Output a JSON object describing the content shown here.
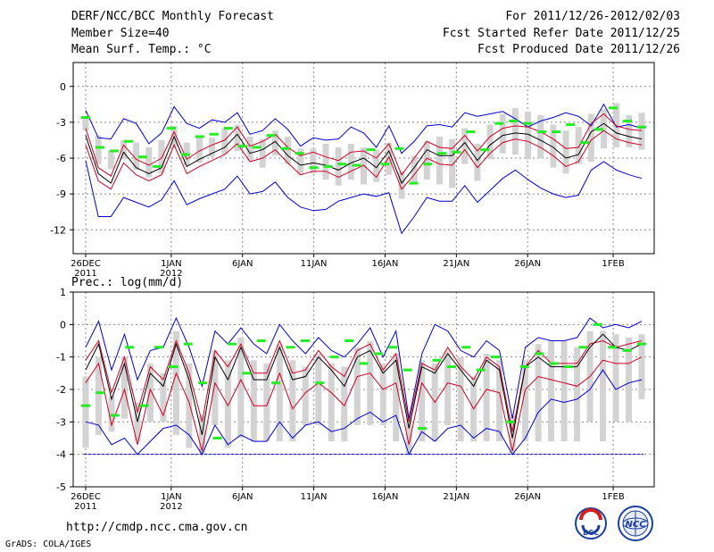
{
  "header": {
    "title": "DERF/NCC/BCC Monthly Forecast",
    "member_size": "Member Size=40",
    "variable": "Mean Surf. Temp.: °C",
    "period": "For 2011/12/26-2012/02/03",
    "fcst_started": "Fcst Started Refer Date 2011/12/25",
    "fcst_produced": "Fcst Produced Date 2011/12/26"
  },
  "footer": {
    "url": "http://cmdp.ncc.cma.gov.cn",
    "credit": "GrADS: COLA/IGES",
    "logo_left_text": "BCC",
    "logo_right_text": "NCC"
  },
  "colors": {
    "min_max": "#0000cc",
    "spread": "#cc0022",
    "mean": "#000000",
    "obs": "#22ee22",
    "box": "#d3d3d3",
    "grid": "#888888",
    "floor": "#0000cc"
  },
  "chart_data": [
    {
      "type": "line",
      "name": "temp",
      "title": "Mean Surf. Temp.: °C",
      "xlabel": "",
      "ylabel": "",
      "ylim": [
        -14,
        2
      ],
      "yticks": [
        0,
        -3,
        -6,
        -9,
        -12
      ],
      "x_label_days": [
        0,
        6,
        11,
        16,
        21,
        26,
        31,
        37
      ],
      "x_tick_labels": [
        [
          "26DEC",
          "2011"
        ],
        [
          "1JAN",
          "2012"
        ],
        [
          "6JAN"
        ],
        [
          "11JAN"
        ],
        [
          "16JAN"
        ],
        [
          "21JAN"
        ],
        [
          "26JAN"
        ],
        [
          "1FEB"
        ]
      ],
      "grid": true,
      "days": 39,
      "series": [
        {
          "name": "max",
          "values": [
            -2.0,
            -4.3,
            -4.4,
            -2.7,
            -3.1,
            -4.8,
            -3.9,
            -1.7,
            -3.1,
            -3.5,
            -2.8,
            -3.0,
            -2.2,
            -4.0,
            -3.7,
            -2.7,
            -3.6,
            -5.0,
            -4.3,
            -4.5,
            -4.4,
            -3.4,
            -3.9,
            -5.1,
            -3.3,
            -5.6,
            -4.6,
            -3.3,
            -3.2,
            -3.4,
            -2.2,
            -2.5,
            -2.3,
            -2.1,
            -2.7,
            -3.4,
            -2.9,
            -2.6,
            -2.2,
            -2.5,
            -3.3,
            -1.5,
            -3.4,
            -3.2,
            -3.5
          ]
        },
        {
          "name": "spread_high",
          "values": [
            -3.5,
            -6.8,
            -7.5,
            -4.9,
            -6.1,
            -6.6,
            -6.0,
            -3.8,
            -6.1,
            -5.4,
            -4.9,
            -4.5,
            -3.4,
            -5.0,
            -4.6,
            -4.0,
            -5.1,
            -5.8,
            -5.5,
            -5.9,
            -6.2,
            -5.5,
            -5.4,
            -6.0,
            -4.8,
            -7.4,
            -6.0,
            -4.6,
            -5.1,
            -5.2,
            -4.1,
            -5.4,
            -4.2,
            -3.5,
            -3.3,
            -3.4,
            -3.8,
            -4.4,
            -5.2,
            -5.1,
            -3.1,
            -2.3,
            -3.3,
            -3.6,
            -3.7
          ]
        },
        {
          "name": "mean",
          "values": [
            -4.1,
            -7.3,
            -8.1,
            -5.5,
            -6.8,
            -7.3,
            -6.8,
            -4.2,
            -6.7,
            -6.1,
            -5.6,
            -5.1,
            -4.0,
            -5.6,
            -5.3,
            -4.6,
            -5.8,
            -6.6,
            -6.4,
            -6.6,
            -7.0,
            -6.4,
            -6.0,
            -6.8,
            -5.4,
            -8.1,
            -6.8,
            -5.3,
            -5.8,
            -5.8,
            -4.7,
            -6.2,
            -4.9,
            -4.1,
            -3.9,
            -4.0,
            -4.5,
            -5.1,
            -6.0,
            -5.7,
            -3.8,
            -3.1,
            -3.9,
            -4.2,
            -4.4
          ]
        },
        {
          "name": "spread_low",
          "values": [
            -4.9,
            -7.9,
            -8.6,
            -6.4,
            -7.4,
            -7.9,
            -7.4,
            -4.9,
            -7.3,
            -6.7,
            -6.2,
            -5.7,
            -4.8,
            -6.3,
            -6.0,
            -5.3,
            -6.4,
            -7.4,
            -7.1,
            -7.1,
            -7.6,
            -7.1,
            -6.6,
            -7.6,
            -5.9,
            -8.6,
            -7.4,
            -6.0,
            -6.5,
            -6.6,
            -5.3,
            -6.8,
            -5.6,
            -4.7,
            -4.4,
            -4.6,
            -5.1,
            -5.8,
            -6.7,
            -6.3,
            -4.5,
            -3.7,
            -4.4,
            -4.7,
            -4.9
          ]
        },
        {
          "name": "min",
          "values": [
            -6.2,
            -10.9,
            -10.9,
            -9.3,
            -9.7,
            -10.1,
            -9.5,
            -7.9,
            -9.9,
            -9.4,
            -9.0,
            -8.6,
            -7.5,
            -9.0,
            -8.8,
            -8.0,
            -9.3,
            -10.1,
            -10.4,
            -10.3,
            -9.6,
            -9.3,
            -9.0,
            -9.2,
            -8.9,
            -12.3,
            -10.9,
            -9.3,
            -9.6,
            -9.6,
            -8.3,
            -9.7,
            -8.7,
            -7.7,
            -7.0,
            -7.8,
            -8.5,
            -9.0,
            -9.3,
            -9.1,
            -7.0,
            -6.3,
            -7.0,
            -7.4,
            -7.7
          ]
        }
      ],
      "box_range": [
        [
          -2.7,
          -3.7
        ],
        [
          -4.1,
          -6.5
        ],
        [
          -5.4,
          -6.9
        ],
        [
          -4.5,
          -6.1
        ],
        [
          -4.7,
          -7.0
        ],
        [
          -5.1,
          -7.6
        ],
        [
          -4.5,
          -7.3
        ],
        [
          -3.3,
          -5.1
        ],
        [
          -4.7,
          -6.6
        ],
        [
          -4.2,
          -6.4
        ],
        [
          -4.3,
          -5.9
        ],
        [
          -3.5,
          -5.7
        ],
        [
          -3.2,
          -5.4
        ],
        [
          -4.2,
          -6.2
        ],
        [
          -4.4,
          -6.8
        ],
        [
          -3.7,
          -5.8
        ],
        [
          -4.2,
          -6.5
        ],
        [
          -5.2,
          -7.4
        ],
        [
          -5.2,
          -7.3
        ],
        [
          -4.8,
          -7.8
        ],
        [
          -5.1,
          -8.3
        ],
        [
          -4.8,
          -7.8
        ],
        [
          -5.1,
          -8.2
        ],
        [
          -5.3,
          -8.0
        ],
        [
          -4.7,
          -7.4
        ],
        [
          -7.1,
          -9.4
        ],
        [
          -5.8,
          -8.2
        ],
        [
          -4.6,
          -7.8
        ],
        [
          -4.2,
          -8.2
        ],
        [
          -4.4,
          -8.5
        ],
        [
          -3.5,
          -6.5
        ],
        [
          -4.8,
          -7.9
        ],
        [
          -3.2,
          -6.1
        ],
        [
          -2.3,
          -5.6
        ],
        [
          -1.8,
          -5.7
        ],
        [
          -2.1,
          -6.1
        ],
        [
          -2.4,
          -6.0
        ],
        [
          -3.2,
          -6.8
        ],
        [
          -3.7,
          -7.3
        ],
        [
          -3.4,
          -6.5
        ],
        [
          -2.3,
          -6.3
        ],
        [
          -1.9,
          -5.2
        ],
        [
          -1.4,
          -5.1
        ],
        [
          -2.4,
          -5.1
        ],
        [
          -2.2,
          -5.3
        ]
      ],
      "observed": [
        -2.6,
        -5.1,
        -5.4,
        -4.6,
        -5.9,
        -6.7,
        -3.5,
        -5.7,
        -4.2,
        -4.0,
        -3.5,
        -5.0,
        -5.1,
        -4.1,
        -5.2,
        -5.6,
        -6.8,
        -6.7,
        -6.5,
        -6.6,
        -5.3,
        -6.5,
        -5.2,
        -8.1,
        -6.5,
        -5.6,
        -5.5,
        -3.8,
        -5.3,
        -3.1,
        -2.9,
        -3.1,
        -3.8,
        -3.8,
        -3.2,
        -4.7,
        -3.6,
        -1.8,
        -2.9,
        -3.4
      ]
    },
    {
      "type": "line",
      "name": "precip",
      "title": "Prec.: log(mm/d)",
      "xlabel": "",
      "ylabel": "",
      "ylim": [
        -5,
        1
      ],
      "yticks": [
        1,
        0,
        -1,
        -2,
        -3,
        -4,
        -5
      ],
      "x_label_days": [
        0,
        6,
        11,
        16,
        21,
        26,
        31,
        37
      ],
      "x_tick_labels": [
        [
          "26DEC",
          "2011"
        ],
        [
          "1JAN",
          "2012"
        ],
        [
          "6JAN"
        ],
        [
          "11JAN"
        ],
        [
          "16JAN"
        ],
        [
          "21JAN"
        ],
        [
          "26JAN"
        ],
        [
          "1FEB"
        ]
      ],
      "grid": true,
      "days": 39,
      "floor": -4,
      "series": [
        {
          "name": "max",
          "values": [
            -0.7,
            0.1,
            -1.4,
            -0.3,
            -1.7,
            -0.8,
            -0.7,
            0.2,
            -0.7,
            -1.9,
            -0.2,
            -0.6,
            -0.1,
            -0.6,
            -0.9,
            0.0,
            -0.5,
            -0.9,
            -0.4,
            -0.8,
            -1.0,
            -0.6,
            -0.1,
            -1.0,
            -0.2,
            -2.9,
            -0.9,
            0.0,
            -0.2,
            -0.8,
            -1.0,
            -0.5,
            -0.8,
            -2.9,
            -0.7,
            -0.4,
            -0.5,
            -0.5,
            -0.4,
            0.2,
            -0.1,
            0.0,
            -0.1,
            0.1
          ]
        },
        {
          "name": "spread_high",
          "values": [
            -1.1,
            -0.5,
            -2.1,
            -1.0,
            -2.7,
            -1.3,
            -1.7,
            -0.5,
            -1.5,
            -3.0,
            -0.8,
            -1.3,
            -0.6,
            -1.5,
            -1.5,
            -0.5,
            -1.5,
            -1.4,
            -0.8,
            -1.3,
            -1.6,
            -0.8,
            -0.6,
            -1.4,
            -0.9,
            -3.0,
            -1.2,
            -1.4,
            -0.7,
            -1.3,
            -1.7,
            -1.0,
            -1.3,
            -3.3,
            -1.3,
            -0.8,
            -1.2,
            -1.2,
            -1.2,
            -0.6,
            -0.5,
            -0.7,
            -0.6,
            -0.5
          ]
        },
        {
          "name": "mean",
          "values": [
            -1.4,
            -0.6,
            -2.3,
            -1.2,
            -3.0,
            -1.5,
            -1.9,
            -0.6,
            -1.7,
            -3.4,
            -1.0,
            -1.7,
            -0.7,
            -1.7,
            -1.7,
            -0.7,
            -1.7,
            -1.6,
            -1.0,
            -1.4,
            -1.9,
            -1.0,
            -0.8,
            -1.5,
            -1.1,
            -3.2,
            -1.3,
            -1.5,
            -0.9,
            -1.4,
            -1.9,
            -1.1,
            -1.4,
            -3.5,
            -1.3,
            -1.0,
            -1.3,
            -1.3,
            -1.3,
            -0.7,
            -0.3,
            -0.7,
            -0.8,
            -0.6
          ]
        },
        {
          "name": "spread_low",
          "values": [
            -1.8,
            -1.2,
            -3.1,
            -2.0,
            -3.7,
            -2.0,
            -2.8,
            -1.5,
            -2.4,
            -3.9,
            -1.8,
            -2.5,
            -1.7,
            -2.5,
            -2.5,
            -1.5,
            -2.6,
            -2.1,
            -1.8,
            -2.1,
            -2.5,
            -1.6,
            -1.5,
            -2.0,
            -1.8,
            -3.7,
            -1.8,
            -2.4,
            -1.8,
            -1.9,
            -2.6,
            -2.0,
            -2.1,
            -3.9,
            -2.0,
            -1.6,
            -1.7,
            -1.8,
            -1.9,
            -1.6,
            -1.1,
            -1.2,
            -1.2,
            -1.0
          ]
        },
        {
          "name": "min",
          "values": [
            -3.0,
            -3.1,
            -3.7,
            -3.5,
            -4.0,
            -3.6,
            -3.2,
            -3.1,
            -3.4,
            -4.0,
            -3.1,
            -3.7,
            -3.4,
            -3.6,
            -3.6,
            -3.0,
            -3.5,
            -3.1,
            -3.0,
            -3.3,
            -3.2,
            -2.9,
            -2.7,
            -3.0,
            -2.8,
            -4.0,
            -3.3,
            -3.6,
            -3.2,
            -3.1,
            -3.5,
            -3.2,
            -3.3,
            -4.0,
            -3.5,
            -2.7,
            -2.3,
            -2.4,
            -2.3,
            -2.0,
            -1.4,
            -2.0,
            -1.8,
            -1.7
          ]
        }
      ],
      "box_range": [
        [
          -1.6,
          -3.8
        ],
        [
          -1.0,
          -3.4
        ],
        [
          -2.2,
          -3.3
        ],
        [
          -1.0,
          -2.9
        ],
        [
          -2.4,
          -3.6
        ],
        [
          -1.2,
          -3.0
        ],
        [
          -1.5,
          -3.0
        ],
        [
          -0.2,
          -3.4
        ],
        [
          -1.2,
          -3.8
        ],
        [
          -2.8,
          -4.0
        ],
        [
          -0.8,
          -3.1
        ],
        [
          -1.1,
          -3.8
        ],
        [
          -0.4,
          -3.5
        ],
        [
          -1.1,
          -3.6
        ],
        [
          -1.2,
          -3.6
        ],
        [
          -0.6,
          -3.6
        ],
        [
          -1.1,
          -3.6
        ],
        [
          -1.3,
          -3.1
        ],
        [
          -0.9,
          -3.1
        ],
        [
          -1.2,
          -3.6
        ],
        [
          -1.3,
          -3.6
        ],
        [
          -0.7,
          -3.1
        ],
        [
          -0.5,
          -3.1
        ],
        [
          -1.2,
          -3.1
        ],
        [
          -0.9,
          -3.6
        ],
        [
          -2.9,
          -4.0
        ],
        [
          -1.1,
          -3.6
        ],
        [
          -1.2,
          -3.6
        ],
        [
          -0.8,
          -3.1
        ],
        [
          -1.0,
          -3.6
        ],
        [
          -1.6,
          -3.6
        ],
        [
          -0.9,
          -3.6
        ],
        [
          -1.1,
          -3.6
        ],
        [
          -2.8,
          -4.0
        ],
        [
          -1.1,
          -3.6
        ],
        [
          -0.6,
          -3.6
        ],
        [
          -0.5,
          -3.6
        ],
        [
          -0.5,
          -3.6
        ],
        [
          -0.7,
          -3.6
        ],
        [
          -0.2,
          -3.0
        ],
        [
          -0.2,
          -3.6
        ],
        [
          -0.3,
          -3.0
        ],
        [
          -0.4,
          -3.0
        ],
        [
          -0.3,
          -2.3
        ]
      ],
      "observed": [
        -2.5,
        -2.1,
        -2.8,
        -0.7,
        -2.5,
        -0.7,
        -1.3,
        -0.6,
        -1.8,
        -3.5,
        -0.6,
        -1.5,
        -0.5,
        -1.8,
        -0.7,
        -0.5,
        -1.8,
        -1.0,
        -0.5,
        -1.2,
        -0.9,
        -0.7,
        -1.4,
        -3.2,
        -1.1,
        -1.3,
        -0.7,
        -1.4,
        -1.0,
        -3.0,
        -1.3,
        -0.9,
        -1.2,
        -1.3,
        -0.7,
        0.0,
        -0.7,
        -0.8,
        -0.6
      ]
    }
  ]
}
